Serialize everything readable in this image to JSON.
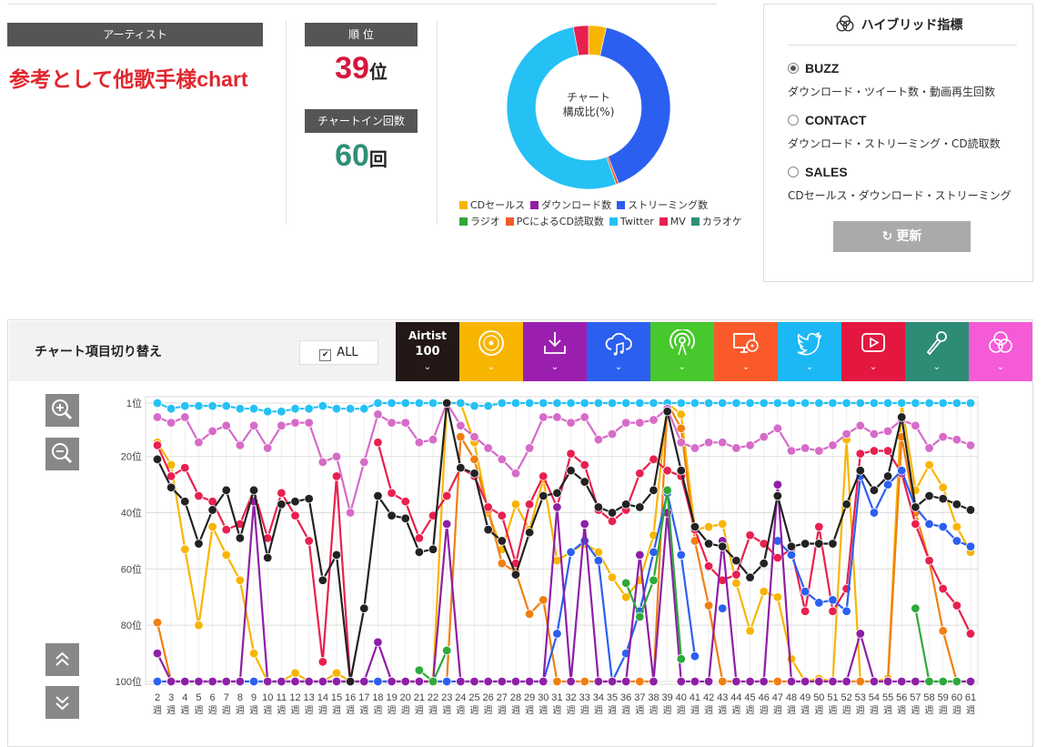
{
  "artist": {
    "label": "アーティスト",
    "name": "参考として他歌手様chart"
  },
  "rank": {
    "label": "順 位",
    "value": "39",
    "unit": "位",
    "color": "#d6153b"
  },
  "chart_in": {
    "label": "チャートイン回数",
    "value": "60",
    "unit": "回",
    "color": "#2f8f76"
  },
  "donut": {
    "center_line1": "チャート",
    "center_line2": "構成比(%)",
    "segments": [
      {
        "name": "CDセールス",
        "value": 3.5,
        "color": "#f8b500"
      },
      {
        "name": "ストリーミング数",
        "value": 40.5,
        "color": "#2b5ff0"
      },
      {
        "name": "PCによるCD読取数",
        "value": 0.5,
        "color": "#f05a28"
      },
      {
        "name": "Twitter",
        "value": 52.5,
        "color": "#25c1f5"
      },
      {
        "name": "MV",
        "value": 3.0,
        "color": "#e8204f"
      }
    ]
  },
  "legend": [
    {
      "label": "CDセールス",
      "color": "#f8b500"
    },
    {
      "label": "ダウンロード数",
      "color": "#8e1fa6"
    },
    {
      "label": "ストリーミング数",
      "color": "#2b5ff0"
    },
    {
      "label": "ラジオ",
      "color": "#2ea93a"
    },
    {
      "label": "PCによるCD読取数",
      "color": "#f05a28"
    },
    {
      "label": "Twitter",
      "color": "#25c1f5"
    },
    {
      "label": "MV",
      "color": "#e8204f"
    },
    {
      "label": "カラオケ",
      "color": "#2f8f76"
    }
  ],
  "hybrid": {
    "title": "ハイブリッド指標",
    "options": [
      {
        "name": "BUZZ",
        "desc": "ダウンロード・ツイート数・動画再生回数",
        "selected": true
      },
      {
        "name": "CONTACT",
        "desc": "ダウンロード・ストリーミング・CD読取数",
        "selected": false
      },
      {
        "name": "SALES",
        "desc": "CDセールス・ダウンロード・ストリーミング",
        "selected": false
      }
    ],
    "update_label": "更新"
  },
  "panel": {
    "switch_label": "チャート項目切り替え",
    "all_label": "ALL",
    "all_checked_glyph": "✔",
    "airtist_label": "Airtist",
    "airtist_value": "100",
    "chevron": "⌄",
    "tabs": [
      {
        "key": "cd",
        "color": "#f8b500",
        "icon": "cd-icon"
      },
      {
        "key": "download",
        "color": "#9b1fae",
        "icon": "download-icon"
      },
      {
        "key": "streaming",
        "color": "#2b5ff0",
        "icon": "cloud-music-icon"
      },
      {
        "key": "radio",
        "color": "#47c82c",
        "icon": "radio-icon"
      },
      {
        "key": "pc",
        "color": "#fa5a2a",
        "icon": "pc-cd-icon"
      },
      {
        "key": "twitter",
        "color": "#1cb8f5",
        "icon": "twitter-icon"
      },
      {
        "key": "mv",
        "color": "#e3173f",
        "icon": "play-icon"
      },
      {
        "key": "karaoke",
        "color": "#2e8b76",
        "icon": "microphone-icon"
      },
      {
        "key": "hybrid",
        "color": "#f55bd6",
        "icon": "hybrid-icon"
      }
    ]
  },
  "chart_data": {
    "type": "line",
    "x": [
      2,
      3,
      4,
      5,
      6,
      7,
      8,
      9,
      10,
      11,
      12,
      13,
      14,
      15,
      16,
      17,
      18,
      19,
      20,
      21,
      22,
      23,
      24,
      25,
      26,
      27,
      28,
      29,
      30,
      31,
      32,
      33,
      34,
      35,
      36,
      37,
      38,
      39,
      40,
      41,
      42,
      43,
      44,
      45,
      46,
      47,
      48,
      49,
      50,
      51,
      52,
      53,
      54,
      55,
      56,
      57,
      58,
      59,
      60,
      61
    ],
    "x_tick_suffix": "週",
    "y_ticks": [
      {
        "v": 1,
        "label": "1位"
      },
      {
        "v": 20,
        "label": "20位"
      },
      {
        "v": 40,
        "label": "40位"
      },
      {
        "v": 60,
        "label": "60位"
      },
      {
        "v": 80,
        "label": "80位"
      },
      {
        "v": 100,
        "label": "100位"
      }
    ],
    "ylim": [
      1,
      100
    ],
    "y_inverted": true,
    "series": [
      {
        "color": "#f8b500",
        "values": [
          15,
          23,
          53,
          80,
          45,
          55,
          64,
          90,
          100,
          100,
          97,
          100,
          100,
          97,
          100,
          100,
          100,
          100,
          100,
          100,
          100,
          1,
          1,
          15,
          40,
          53,
          37,
          46,
          28,
          57,
          54,
          51,
          54,
          63,
          70,
          64,
          48,
          1,
          5,
          46,
          45,
          44,
          65,
          82,
          68,
          70,
          92,
          100,
          99,
          100,
          14,
          100,
          100,
          99,
          1,
          32,
          23,
          31,
          45,
          54
        ]
      },
      {
        "color": "#f07f12",
        "values": [
          79,
          100,
          100,
          100,
          100,
          100,
          100,
          100,
          100,
          100,
          100,
          100,
          100,
          100,
          100,
          100,
          100,
          100,
          100,
          100,
          100,
          100,
          13,
          21,
          39,
          58,
          61,
          76,
          71,
          100,
          100,
          100,
          100,
          100,
          100,
          100,
          100,
          1,
          10,
          50,
          73,
          100,
          100,
          100,
          100,
          100,
          100,
          100,
          100,
          100,
          100,
          100,
          100,
          100,
          13,
          40,
          57,
          82,
          100,
          100
        ]
      },
      {
        "color": "#e8204f",
        "values": [
          16,
          27,
          24,
          34,
          36,
          46,
          44,
          32,
          49,
          33,
          41,
          50,
          93,
          27,
          100,
          null,
          15,
          33,
          36,
          49,
          41,
          34,
          24,
          27,
          38,
          41,
          58,
          37,
          27,
          38,
          19,
          23,
          39,
          43,
          39,
          26,
          21,
          25,
          27,
          46,
          59,
          64,
          62,
          48,
          51,
          56,
          53,
          75,
          45,
          75,
          67,
          19,
          18,
          18,
          26,
          44,
          57,
          67,
          73,
          83
        ]
      },
      {
        "color": "#2b5ff0",
        "values": [
          100,
          100,
          100,
          100,
          100,
          100,
          100,
          100,
          100,
          100,
          100,
          100,
          100,
          100,
          100,
          100,
          100,
          100,
          100,
          100,
          100,
          100,
          100,
          100,
          100,
          100,
          100,
          100,
          100,
          83,
          54,
          50,
          57,
          100,
          90,
          75,
          54,
          33,
          55,
          91,
          null,
          74,
          null,
          null,
          null,
          50,
          55,
          68,
          72,
          71,
          75,
          27,
          40,
          30,
          25,
          38,
          44,
          45,
          50,
          52
        ]
      },
      {
        "color": "#8e1fa6",
        "values": [
          90,
          100,
          100,
          100,
          100,
          100,
          100,
          36,
          100,
          100,
          100,
          100,
          100,
          100,
          100,
          100,
          86,
          100,
          100,
          100,
          100,
          44,
          100,
          100,
          100,
          100,
          100,
          100,
          100,
          38,
          100,
          44,
          100,
          100,
          100,
          55,
          100,
          40,
          100,
          100,
          100,
          50,
          100,
          100,
          100,
          30,
          100,
          100,
          100,
          100,
          100,
          83,
          100,
          100,
          100,
          100,
          100,
          100,
          100,
          100
        ]
      },
      {
        "color": "#2ea93a",
        "values": [
          null,
          null,
          null,
          null,
          null,
          null,
          null,
          null,
          null,
          null,
          null,
          null,
          null,
          null,
          null,
          null,
          null,
          null,
          null,
          96,
          100,
          89,
          null,
          null,
          null,
          null,
          null,
          null,
          null,
          null,
          null,
          null,
          null,
          null,
          65,
          77,
          64,
          32,
          92,
          null,
          null,
          null,
          null,
          null,
          null,
          null,
          null,
          null,
          null,
          null,
          null,
          null,
          null,
          null,
          null,
          74,
          100,
          100,
          100,
          null
        ]
      },
      {
        "color": "#25c1f5",
        "values": [
          1,
          3,
          2,
          2,
          2,
          2,
          3,
          3,
          4,
          4,
          3,
          3,
          2,
          3,
          3,
          3,
          1,
          1,
          1,
          1,
          1,
          1,
          1,
          2,
          2,
          1,
          1,
          1,
          1,
          1,
          1,
          1,
          1,
          1,
          1,
          1,
          1,
          1,
          1,
          1,
          1,
          1,
          1,
          1,
          1,
          1,
          1,
          1,
          1,
          1,
          1,
          1,
          1,
          1,
          1,
          1,
          1,
          1,
          1,
          1
        ]
      },
      {
        "color": "#d66bc8",
        "values": [
          6,
          8,
          6,
          15,
          11,
          9,
          16,
          9,
          17,
          9,
          8,
          8,
          22,
          20,
          40,
          22,
          5,
          8,
          8,
          15,
          14,
          1,
          9,
          13,
          17,
          21,
          26,
          17,
          6,
          6,
          8,
          6,
          14,
          12,
          8,
          8,
          7,
          3,
          15,
          17,
          15,
          15,
          17,
          16,
          13,
          10,
          18,
          17,
          18,
          16,
          12,
          9,
          12,
          11,
          7,
          9,
          17,
          13,
          14,
          16
        ]
      },
      {
        "color": "#222222",
        "values": [
          21,
          31,
          36,
          51,
          39,
          32,
          49,
          32,
          56,
          37,
          36,
          35,
          64,
          55,
          100,
          74,
          34,
          41,
          42,
          54,
          53,
          1,
          24,
          26,
          46,
          50,
          62,
          47,
          34,
          33,
          25,
          29,
          38,
          40,
          37,
          38,
          32,
          4,
          25,
          45,
          51,
          52,
          57,
          63,
          58,
          34,
          52,
          51,
          51,
          51,
          37,
          25,
          32,
          27,
          6,
          38,
          34,
          35,
          37,
          39
        ]
      }
    ]
  }
}
